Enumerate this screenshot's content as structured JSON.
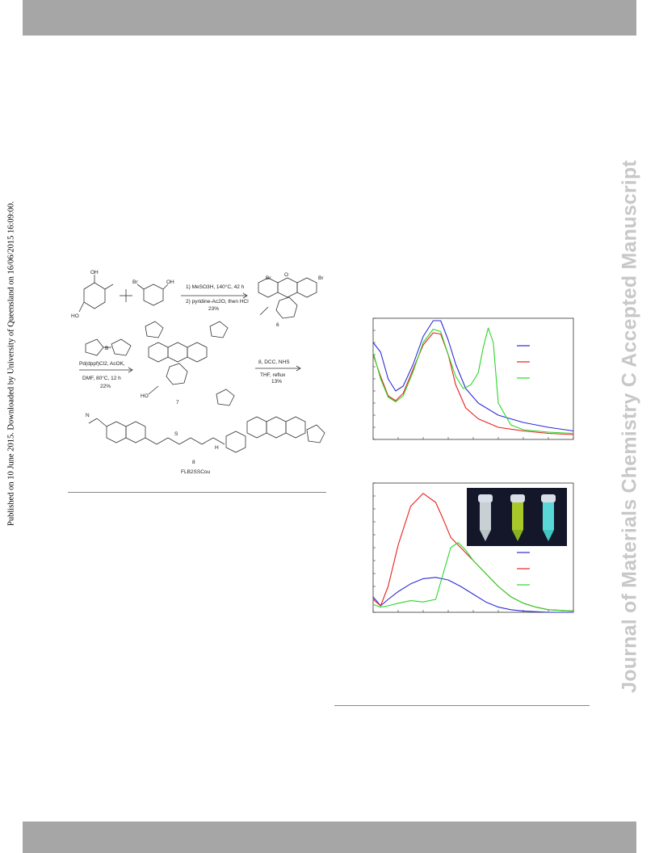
{
  "page": {
    "side_note": "Published on 10 June 2015. Downloaded by University of Queensland on 16/06/2015 16:09:00.",
    "journal_watermark": "Journal of Materials Chemistry C Accepted Manuscript"
  },
  "scheme": {
    "reagent_1": "1) MeSO3H, 140°C, 42 h",
    "reagent_2": "2) pyridine-Ac2O, then HCl",
    "yield_1": "23%",
    "compound_6": "6",
    "reagent_3": "Pd(dppf)Cl2, AcOK,",
    "reagent_4": "DMF, 80°C, 12 h",
    "yield_2": "22%",
    "compound_7": "7",
    "reagent_5": "8, DCC, NHS",
    "reagent_6": "THF, reflux",
    "yield_3": "13%",
    "compound_8": "8",
    "product_name": "FLB2SSCou",
    "atom_labels": {
      "br": "Br",
      "oh": "OH",
      "o": "O",
      "ho": "HO",
      "b": "B",
      "h": "H",
      "n": "N",
      "s": "S"
    }
  },
  "colors": {
    "blue": "#2b2bd8",
    "red": "#e8201c",
    "green": "#28d828",
    "bar": "#a6a6a6"
  },
  "chart_data": [
    {
      "type": "line",
      "ylim": [
        0,
        1
      ],
      "xlim": [
        0,
        8
      ],
      "series": [
        {
          "color": "blue",
          "x": [
            0,
            0.3,
            0.6,
            0.9,
            1.2,
            1.6,
            2.0,
            2.4,
            2.7,
            3.0,
            3.3,
            3.7,
            4.2,
            5.0,
            6.0,
            7.0,
            8.0
          ],
          "y": [
            0.8,
            0.72,
            0.5,
            0.4,
            0.44,
            0.62,
            0.85,
            0.98,
            0.98,
            0.82,
            0.62,
            0.42,
            0.3,
            0.2,
            0.14,
            0.1,
            0.07
          ]
        },
        {
          "color": "red",
          "x": [
            0,
            0.3,
            0.6,
            0.9,
            1.2,
            1.6,
            2.0,
            2.4,
            2.7,
            3.0,
            3.3,
            3.7,
            4.2,
            5.0,
            6.0,
            7.0,
            8.0
          ],
          "y": [
            0.7,
            0.52,
            0.36,
            0.32,
            0.38,
            0.58,
            0.78,
            0.88,
            0.87,
            0.7,
            0.45,
            0.26,
            0.17,
            0.1,
            0.07,
            0.05,
            0.04
          ]
        },
        {
          "color": "green",
          "x": [
            0,
            0.3,
            0.6,
            0.9,
            1.2,
            1.6,
            2.0,
            2.4,
            2.7,
            3.0,
            3.3,
            3.6,
            3.9,
            4.2,
            4.4,
            4.6,
            4.8,
            5.0,
            5.5,
            6.0,
            7.0,
            8.0
          ],
          "y": [
            0.72,
            0.5,
            0.35,
            0.31,
            0.36,
            0.56,
            0.8,
            0.91,
            0.89,
            0.7,
            0.52,
            0.42,
            0.45,
            0.55,
            0.76,
            0.92,
            0.8,
            0.3,
            0.12,
            0.08,
            0.06,
            0.05
          ]
        }
      ],
      "legend_placement": "right"
    },
    {
      "type": "line",
      "ylim": [
        0,
        1
      ],
      "xlim": [
        0,
        8
      ],
      "series": [
        {
          "color": "blue",
          "x": [
            0,
            0.3,
            0.6,
            1.0,
            1.5,
            2.0,
            2.5,
            3.0,
            3.5,
            4.0,
            4.5,
            5.0,
            5.5,
            6.0,
            7.0,
            8.0
          ],
          "y": [
            0.12,
            0.05,
            0.1,
            0.16,
            0.22,
            0.26,
            0.27,
            0.25,
            0.2,
            0.14,
            0.08,
            0.04,
            0.02,
            0.01,
            0.0,
            0.0
          ]
        },
        {
          "color": "red",
          "x": [
            0,
            0.3,
            0.6,
            1.0,
            1.5,
            2.0,
            2.5,
            2.8,
            3.1,
            3.5,
            4.0,
            4.5,
            5.0,
            5.5,
            6.0,
            6.5,
            7.0,
            8.0
          ],
          "y": [
            0.1,
            0.05,
            0.2,
            0.52,
            0.82,
            0.92,
            0.85,
            0.72,
            0.58,
            0.5,
            0.4,
            0.3,
            0.2,
            0.12,
            0.07,
            0.04,
            0.02,
            0.01
          ]
        },
        {
          "color": "green",
          "x": [
            0,
            0.3,
            0.6,
            1.0,
            1.5,
            2.0,
            2.5,
            2.8,
            3.1,
            3.4,
            3.7,
            4.0,
            4.5,
            5.0,
            5.5,
            6.0,
            6.5,
            7.0,
            8.0
          ],
          "y": [
            0.06,
            0.04,
            0.05,
            0.07,
            0.09,
            0.08,
            0.1,
            0.3,
            0.5,
            0.54,
            0.48,
            0.4,
            0.3,
            0.2,
            0.12,
            0.07,
            0.04,
            0.02,
            0.01
          ]
        }
      ],
      "legend_placement": "right"
    }
  ]
}
